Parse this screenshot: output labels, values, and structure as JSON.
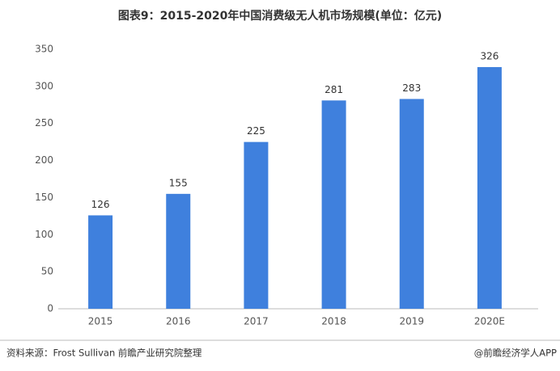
{
  "chart_data": {
    "type": "bar",
    "title": "图表9：2015-2020年中国消费级无人机市场规模(单位：亿元)",
    "categories": [
      "2015",
      "2016",
      "2017",
      "2018",
      "2019",
      "2020E"
    ],
    "values": [
      126,
      155,
      225,
      281,
      283,
      326
    ],
    "color": "#3f80dd",
    "ylim": [
      0,
      350
    ],
    "yticks": [
      0,
      50,
      100,
      150,
      200,
      250,
      300,
      350
    ],
    "grid": false
  },
  "source": "资料来源：Frost Sullivan 前瞻产业研究院整理",
  "credit": "@前瞻经济学人APP"
}
